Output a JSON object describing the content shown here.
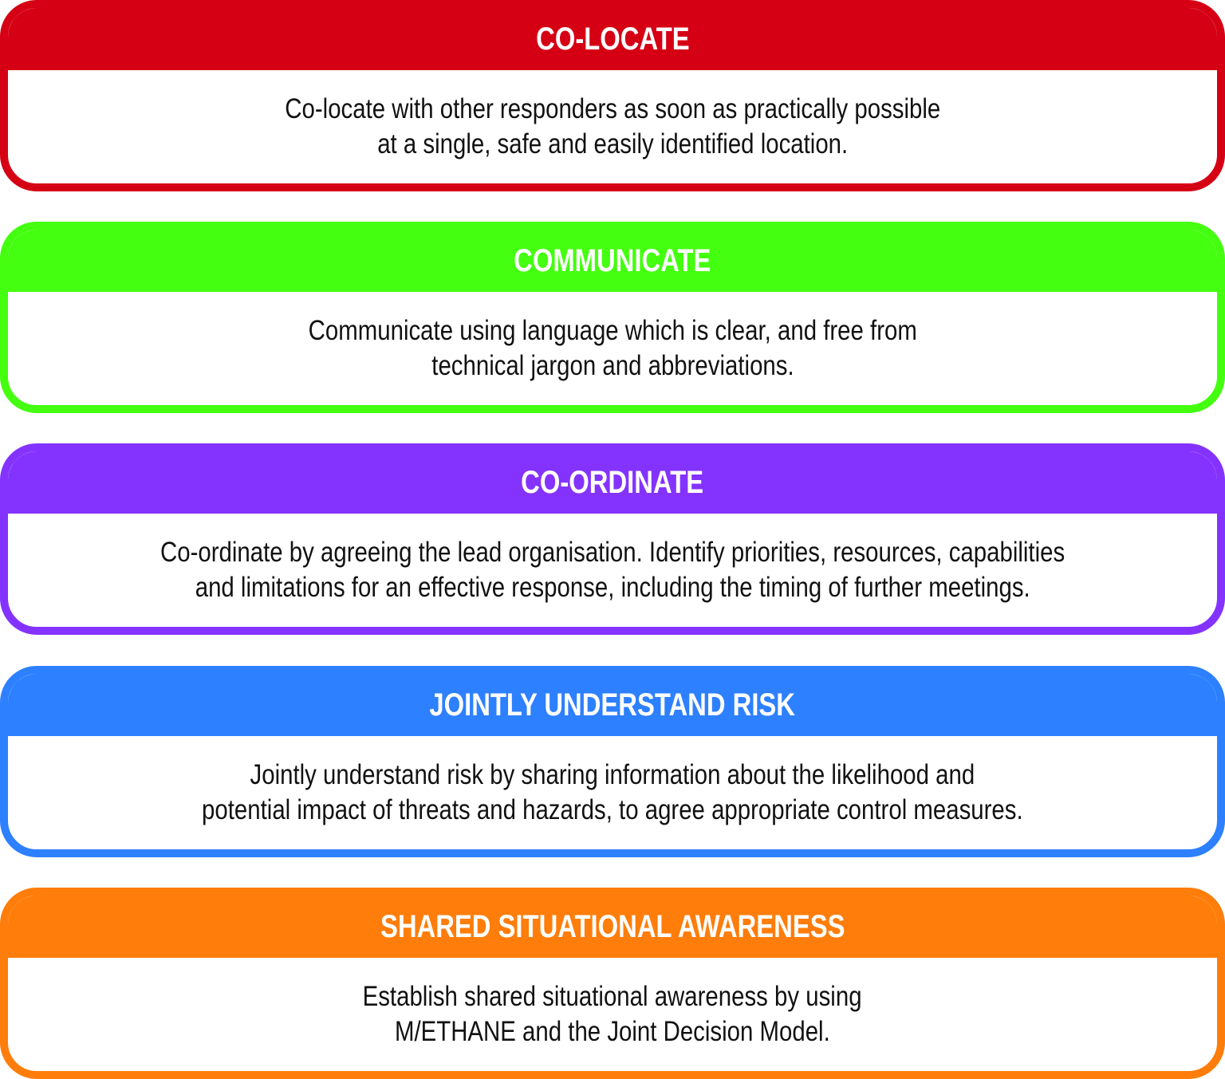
{
  "cards": [
    {
      "title": "CO-LOCATE",
      "color": "#d50014",
      "lines": [
        "Co-locate with other responders as soon as practically possible",
        "at a single, safe and easily identified location."
      ]
    },
    {
      "title": "COMMUNICATE",
      "color": "#44ff0f",
      "lines": [
        "Communicate using language which is clear, and free from",
        "technical jargon and abbreviations."
      ]
    },
    {
      "title": "CO-ORDINATE",
      "color": "#8433ff",
      "lines": [
        "Co-ordinate by agreeing the lead organisation. Identify priorities, resources, capabilities",
        "and limitations for an effective response, including the timing of further meetings."
      ]
    },
    {
      "title": "JOINTLY UNDERSTAND RISK",
      "color": "#2d80ff",
      "lines": [
        "Jointly understand risk by sharing information about the likelihood and",
        "potential impact of threats and hazards, to agree appropriate control measures."
      ]
    },
    {
      "title": "SHARED SITUATIONAL AWARENESS",
      "color": "#ff7d0a",
      "lines": [
        "Establish shared situational awareness by using",
        "M/ETHANE and the Joint Decision Model."
      ]
    }
  ]
}
